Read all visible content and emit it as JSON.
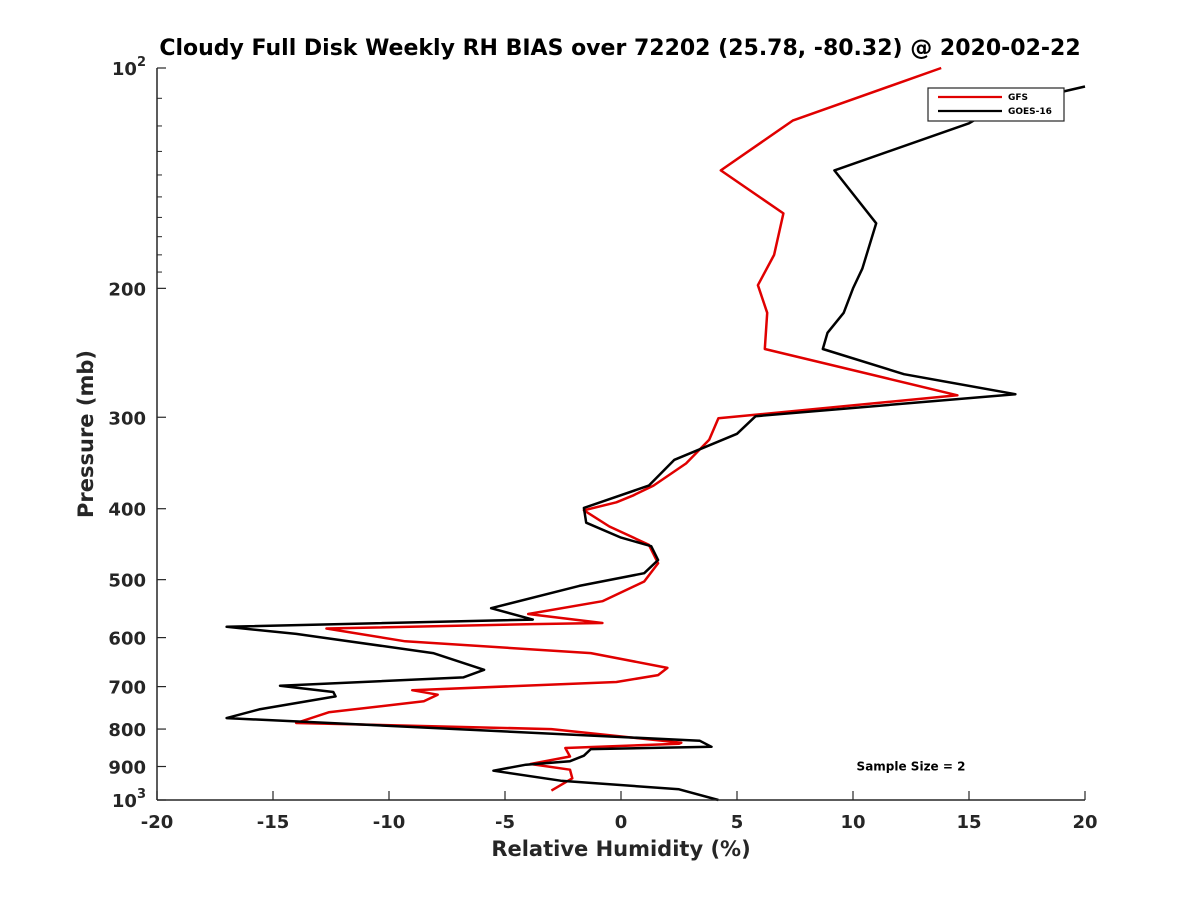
{
  "chart_data": {
    "type": "line",
    "title": "Cloudy Full Disk Weekly RH BIAS over 72202 (25.78, -80.32) @ 2020-02-22",
    "xlabel": "Relative Humidity (%)",
    "ylabel": "Pressure (mb)",
    "xlim": [
      -20,
      20
    ],
    "ylim": [
      100,
      1000
    ],
    "yscale": "log",
    "y_reversed": true,
    "grid": false,
    "legend_position": "top-right",
    "x_ticks": [
      -20,
      -15,
      -10,
      -5,
      0,
      5,
      10,
      15,
      20
    ],
    "x_tick_labels": [
      "-20",
      "-15",
      "-10",
      "-5",
      "0",
      "5",
      "10",
      "15",
      "20"
    ],
    "y_ticks": [
      {
        "value": 100,
        "base": "10",
        "exp": "2"
      },
      {
        "value": 200,
        "base": "200",
        "exp": ""
      },
      {
        "value": 300,
        "base": "300",
        "exp": ""
      },
      {
        "value": 400,
        "base": "400",
        "exp": ""
      },
      {
        "value": 500,
        "base": "500",
        "exp": ""
      },
      {
        "value": 600,
        "base": "600",
        "exp": ""
      },
      {
        "value": 700,
        "base": "700",
        "exp": ""
      },
      {
        "value": 800,
        "base": "800",
        "exp": ""
      },
      {
        "value": 900,
        "base": "900",
        "exp": ""
      },
      {
        "value": 1000,
        "base": "10",
        "exp": "3"
      }
    ],
    "series": [
      {
        "name": "GFS",
        "color": "#e00000",
        "x": [
          13.8,
          7.4,
          4.3,
          7.0,
          6.6,
          5.9,
          6.3,
          6.2,
          14.5,
          4.2,
          3.8,
          2.8,
          1.4,
          0.5,
          -0.2,
          -1.6,
          -0.5,
          1.2,
          1.6,
          1.0,
          -0.8,
          -4.0,
          -0.8,
          -3.8,
          -12.7,
          -9.3,
          -1.3,
          2.0,
          1.6,
          -0.2,
          -9.0,
          -7.9,
          -8.5,
          -12.6,
          -14.0,
          -3.0,
          2.6,
          2.5,
          -2.4,
          -2.2,
          -3.9,
          -2.2,
          -2.1,
          -3.0
        ],
        "y": [
          100,
          118,
          138,
          158,
          180,
          198,
          216,
          242,
          280,
          301,
          322,
          347,
          372,
          384,
          392,
          402,
          423,
          448,
          475,
          503,
          535,
          557,
          573,
          575,
          583,
          607,
          630,
          660,
          675,
          690,
          708,
          718,
          733,
          759,
          785,
          800,
          835,
          838,
          849,
          872,
          893,
          909,
          934,
          971
        ]
      },
      {
        "name": "GOES-16",
        "color": "#000000",
        "x": [
          20.0,
          16.2,
          15.0,
          9.2,
          11.0,
          10.4,
          10.0,
          9.6,
          8.9,
          8.7,
          12.2,
          17.0,
          5.8,
          5.0,
          2.3,
          1.2,
          -1.6,
          -1.5,
          0.0,
          1.3,
          1.6,
          1.0,
          -1.8,
          -5.6,
          -3.8,
          -17.0,
          -14.0,
          -8.1,
          -5.9,
          -6.8,
          -14.7,
          -12.4,
          -12.3,
          -15.6,
          -17.0,
          3.4,
          3.9,
          -1.3,
          -1.6,
          -2.2,
          -4.1,
          -5.5,
          -2.6,
          2.5,
          4.2
        ],
        "y": [
          106,
          113,
          119,
          138,
          163,
          188,
          200,
          216,
          230,
          242,
          262,
          279,
          299,
          316,
          343,
          372,
          399,
          418,
          438,
          450,
          470,
          490,
          510,
          547,
          567,
          580,
          593,
          630,
          664,
          680,
          698,
          712,
          722,
          752,
          773,
          830,
          846,
          852,
          870,
          885,
          895,
          912,
          941,
          967,
          1000
        ]
      }
    ],
    "annotations": [
      {
        "text": "Sample Size = 2",
        "x": 12.5,
        "y": 900
      }
    ]
  }
}
